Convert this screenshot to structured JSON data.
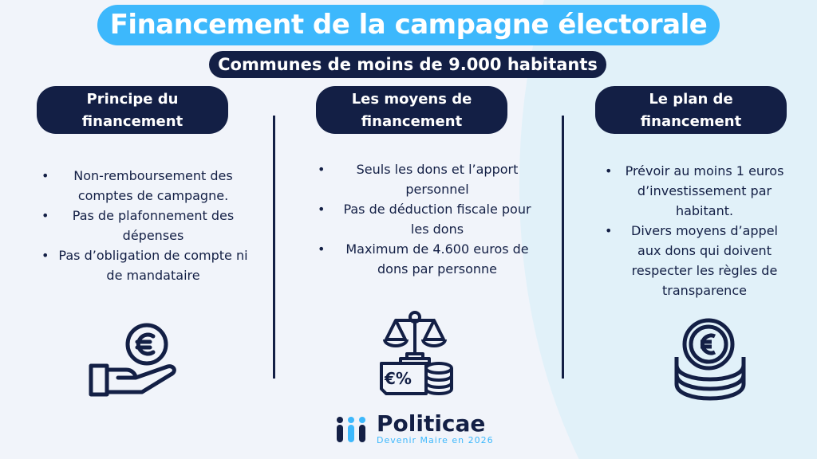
{
  "title": "Financement de la campagne électorale",
  "subtitle": "Communes de moins de 9.000 habitants",
  "columns": [
    {
      "header_line1": "Principe du",
      "header_line2": "financement",
      "icon": "hand-euro-coin-icon",
      "bullets": [
        "Non-remboursement des comptes de campagne.",
        "Pas de plafonnement des dépenses",
        "Pas d’obligation de compte ni de mandataire"
      ]
    },
    {
      "header_line1": "Les moyens de",
      "header_line2": "financement",
      "icon": "scale-euro-percent-coins-icon",
      "bullets": [
        "Seuls les dons et l’apport personnel",
        "Pas de déduction fiscale pour les dons",
        "Maximum de 4.600 euros de dons par personne"
      ]
    },
    {
      "header_line1": "Le plan de",
      "header_line2": "financement",
      "icon": "euro-coin-stack-icon",
      "bullets": [
        "Prévoir au moins 1 euros d’investissement par habitant.",
        "Divers moyens d’appel aux dons qui doivent respecter les règles de transparence"
      ]
    }
  ],
  "logo": {
    "name": "Politicae",
    "tagline": "Devenir Maire en 2026"
  },
  "colors": {
    "accent": "#3db8fc",
    "navy": "#131f45",
    "background": "#f1f4fa"
  }
}
